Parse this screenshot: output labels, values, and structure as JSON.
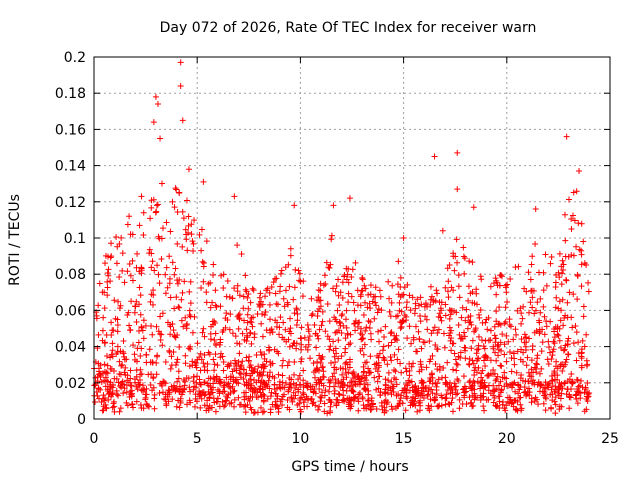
{
  "chart_data": {
    "type": "scatter",
    "title": "Day 072 of 2026, Rate Of TEC Index for receiver warn",
    "xlabel": "GPS time / hours",
    "ylabel": "ROTI / TECUs",
    "xlim": [
      0,
      25
    ],
    "ylim": [
      0,
      0.2
    ],
    "xticks": [
      0,
      5,
      10,
      15,
      20,
      25
    ],
    "xtick_labels": [
      "0",
      "5",
      "10",
      "15",
      "20",
      "25"
    ],
    "yticks": [
      0,
      0.02,
      0.04,
      0.06,
      0.08,
      0.1,
      0.12,
      0.14,
      0.16,
      0.18,
      0.2
    ],
    "ytick_labels": [
      "0",
      "0.02",
      "0.04",
      "0.06",
      "0.08",
      "0.1",
      "0.12",
      "0.14",
      "0.16",
      "0.18",
      "0.2"
    ],
    "grid": true,
    "marker": "+",
    "color": "#ff0000",
    "data_x_range_hours": [
      0.0,
      24.0
    ],
    "notable_points": [
      {
        "x": 4.2,
        "y": 0.197
      },
      {
        "x": 4.2,
        "y": 0.184
      },
      {
        "x": 3.0,
        "y": 0.178
      },
      {
        "x": 3.1,
        "y": 0.174
      },
      {
        "x": 2.9,
        "y": 0.164
      },
      {
        "x": 4.3,
        "y": 0.165
      },
      {
        "x": 22.9,
        "y": 0.156
      },
      {
        "x": 17.6,
        "y": 0.147
      },
      {
        "x": 16.5,
        "y": 0.145
      },
      {
        "x": 3.2,
        "y": 0.155
      },
      {
        "x": 5.3,
        "y": 0.131
      },
      {
        "x": 4.6,
        "y": 0.138
      },
      {
        "x": 6.8,
        "y": 0.123
      },
      {
        "x": 12.4,
        "y": 0.122
      },
      {
        "x": 9.7,
        "y": 0.118
      },
      {
        "x": 11.6,
        "y": 0.118
      },
      {
        "x": 23.5,
        "y": 0.137
      },
      {
        "x": 17.6,
        "y": 0.127
      },
      {
        "x": 18.4,
        "y": 0.117
      },
      {
        "x": 21.4,
        "y": 0.116
      },
      {
        "x": 15.0,
        "y": 0.1
      },
      {
        "x": 16.9,
        "y": 0.104
      },
      {
        "x": 2.3,
        "y": 0.123
      },
      {
        "x": 1.7,
        "y": 0.112
      }
    ],
    "envelope": [
      {
        "x": 0.0,
        "y": 0.075
      },
      {
        "x": 0.5,
        "y": 0.092
      },
      {
        "x": 1.0,
        "y": 0.1
      },
      {
        "x": 1.5,
        "y": 0.107
      },
      {
        "x": 2.0,
        "y": 0.11
      },
      {
        "x": 2.5,
        "y": 0.118
      },
      {
        "x": 3.0,
        "y": 0.15
      },
      {
        "x": 3.5,
        "y": 0.118
      },
      {
        "x": 4.0,
        "y": 0.135
      },
      {
        "x": 4.5,
        "y": 0.125
      },
      {
        "x": 5.0,
        "y": 0.115
      },
      {
        "x": 5.5,
        "y": 0.098
      },
      {
        "x": 6.0,
        "y": 0.08
      },
      {
        "x": 6.5,
        "y": 0.085
      },
      {
        "x": 7.0,
        "y": 0.098
      },
      {
        "x": 7.5,
        "y": 0.075
      },
      {
        "x": 8.0,
        "y": 0.07
      },
      {
        "x": 8.5,
        "y": 0.075
      },
      {
        "x": 9.0,
        "y": 0.08
      },
      {
        "x": 9.5,
        "y": 0.095
      },
      {
        "x": 10.0,
        "y": 0.085
      },
      {
        "x": 10.5,
        "y": 0.075
      },
      {
        "x": 11.0,
        "y": 0.075
      },
      {
        "x": 11.5,
        "y": 0.105
      },
      {
        "x": 12.0,
        "y": 0.08
      },
      {
        "x": 12.5,
        "y": 0.09
      },
      {
        "x": 13.0,
        "y": 0.08
      },
      {
        "x": 13.5,
        "y": 0.08
      },
      {
        "x": 14.0,
        "y": 0.075
      },
      {
        "x": 14.5,
        "y": 0.085
      },
      {
        "x": 15.0,
        "y": 0.092
      },
      {
        "x": 15.5,
        "y": 0.08
      },
      {
        "x": 16.0,
        "y": 0.07
      },
      {
        "x": 16.5,
        "y": 0.075
      },
      {
        "x": 17.0,
        "y": 0.08
      },
      {
        "x": 17.5,
        "y": 0.1
      },
      {
        "x": 18.0,
        "y": 0.095
      },
      {
        "x": 18.5,
        "y": 0.09
      },
      {
        "x": 19.0,
        "y": 0.075
      },
      {
        "x": 19.5,
        "y": 0.08
      },
      {
        "x": 20.0,
        "y": 0.08
      },
      {
        "x": 20.5,
        "y": 0.085
      },
      {
        "x": 21.0,
        "y": 0.085
      },
      {
        "x": 21.5,
        "y": 0.105
      },
      {
        "x": 22.0,
        "y": 0.09
      },
      {
        "x": 22.5,
        "y": 0.095
      },
      {
        "x": 23.0,
        "y": 0.128
      },
      {
        "x": 23.5,
        "y": 0.13
      },
      {
        "x": 24.0,
        "y": 0.09
      }
    ],
    "baseline_range": [
      0.003,
      0.02
    ],
    "approx_point_count": 2400
  }
}
